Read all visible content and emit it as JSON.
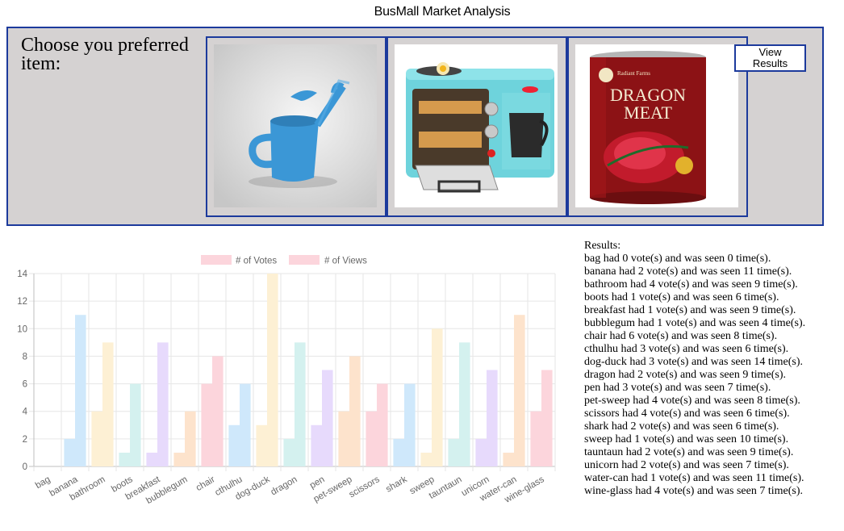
{
  "page": {
    "title": "BusMall Market Analysis"
  },
  "voting": {
    "prompt": "Choose you preferred item:",
    "view_results_label": "View\nResults",
    "items": [
      {
        "product": "water-can",
        "icon": "watering-can-mug-image"
      },
      {
        "product": "breakfast",
        "icon": "breakfast-station-image"
      },
      {
        "product": "dragon",
        "icon": "dragon-meat-can-image"
      }
    ],
    "dragon_can_brand": "Radiant Farms",
    "dragon_can_text": [
      "DRAGON",
      "MEAT"
    ]
  },
  "results": {
    "heading": "Results:",
    "lines": [
      "bag had 0 vote(s) and was seen 0 time(s).",
      "banana had 2 vote(s) and was seen 11 time(s).",
      "bathroom had 4 vote(s) and was seen 9 time(s).",
      "boots had 1 vote(s) and was seen 6 time(s).",
      "breakfast had 1 vote(s) and was seen 9 time(s).",
      "bubblegum had 1 vote(s) and was seen 4 time(s).",
      "chair had 6 vote(s) and was seen 8 time(s).",
      "cthulhu had 3 vote(s) and was seen 6 time(s).",
      "dog-duck had 3 vote(s) and was seen 14 time(s).",
      "dragon had 2 vote(s) and was seen 9 time(s).",
      "pen had 3 vote(s) and was seen 7 time(s).",
      "pet-sweep had 4 vote(s) and was seen 8 time(s).",
      "scissors had 4 vote(s) and was seen 6 time(s).",
      "shark had 2 vote(s) and was seen 6 time(s).",
      "sweep had 1 vote(s) and was seen 10 time(s).",
      "tauntaun had 2 vote(s) and was seen 9 time(s).",
      "unicorn had 2 vote(s) and was seen 7 time(s).",
      "water-can had 1 vote(s) and was seen 11 time(s).",
      "wine-glass had 4 vote(s) and was seen 7 time(s)."
    ]
  },
  "chart_data": {
    "type": "bar",
    "categories": [
      "bag",
      "banana",
      "bathroom",
      "boots",
      "breakfast",
      "bubblegum",
      "chair",
      "cthulhu",
      "dog-duck",
      "dragon",
      "pen",
      "pet-sweep",
      "scissors",
      "shark",
      "sweep",
      "tauntaun",
      "unicorn",
      "water-can",
      "wine-glass"
    ],
    "series": [
      {
        "name": "# of Votes",
        "values": [
          0,
          2,
          4,
          1,
          1,
          1,
          6,
          3,
          3,
          2,
          3,
          4,
          4,
          2,
          1,
          2,
          2,
          1,
          4
        ]
      },
      {
        "name": "# of Views",
        "values": [
          0,
          11,
          9,
          6,
          9,
          4,
          8,
          6,
          14,
          9,
          7,
          8,
          6,
          6,
          10,
          9,
          7,
          11,
          7
        ]
      }
    ],
    "ylim": [
      0,
      14
    ],
    "yticks": [
      0,
      2,
      4,
      6,
      8,
      10,
      12,
      14
    ],
    "grid": true,
    "legend_position": "top",
    "legend_color": "#fcd5dc",
    "bar_colors": [
      "#fcd5dc",
      "#cfe8fb",
      "#fdf0d4",
      "#d4f1ef",
      "#e7dafc",
      "#fde3cc",
      "#fcd5dc",
      "#cfe8fb",
      "#fdf0d4",
      "#d4f1ef",
      "#e7dafc",
      "#fde3cc",
      "#fcd5dc",
      "#cfe8fb",
      "#fdf0d4",
      "#d4f1ef",
      "#e7dafc",
      "#fde3cc",
      "#fcd5dc"
    ],
    "view_colors": [
      "#fcd5dc",
      "#cfe8fb",
      "#fdf0d4",
      "#d4f1ef",
      "#e7dafc",
      "#fde3cc",
      "#fcd5dc",
      "#cfe8fb",
      "#fdf0d4",
      "#d4f1ef",
      "#e7dafc",
      "#fde3cc",
      "#fcd5dc",
      "#cfe8fb",
      "#fdf0d4",
      "#d4f1ef",
      "#e7dafc",
      "#fde3cc",
      "#fcd5dc"
    ]
  },
  "colors": {
    "panel_bg": "#d5d2d2",
    "border": "#1c3a9c"
  }
}
